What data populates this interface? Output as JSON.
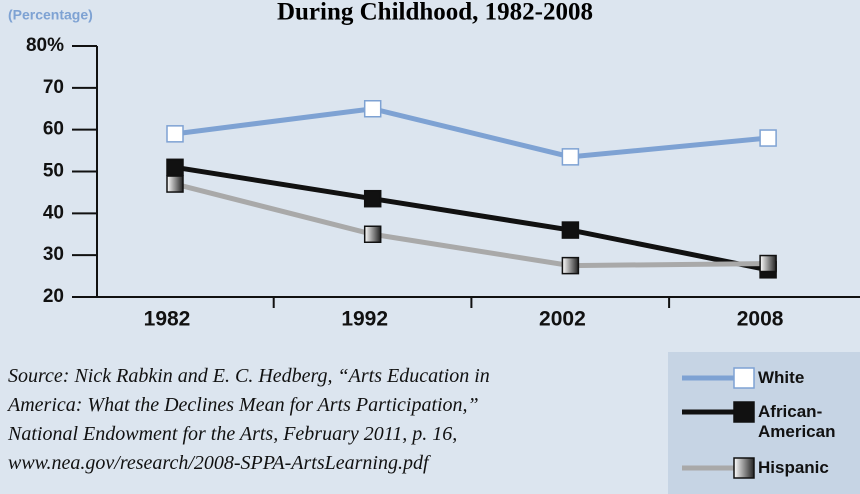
{
  "chart_data": {
    "type": "line",
    "title": "During Childhood, 1982-2008",
    "y_label": "(Percentage)",
    "categories": [
      "1982",
      "1992",
      "2002",
      "2008"
    ],
    "series": [
      {
        "name": "White",
        "color": "#7ea2d3",
        "marker": "#ffffff",
        "values": [
          59,
          65,
          53.5,
          58
        ]
      },
      {
        "name": "African-American",
        "color": "#111111",
        "marker": "#111111",
        "values": [
          51,
          43.5,
          36,
          26.5
        ]
      },
      {
        "name": "Hispanic",
        "color": "#a9a9a9",
        "marker": "gradient",
        "values": [
          47,
          35,
          27.5,
          28
        ]
      }
    ],
    "ylim": [
      20,
      80
    ],
    "yticks": [
      20,
      30,
      40,
      50,
      60,
      70,
      {
        "value": 80,
        "label": "80%"
      }
    ],
    "source": [
      "Source: Nick Rabkin and E. C. Hedberg, “Arts Education in",
      "America: What the Declines Mean for Arts Participation,”",
      "National Endowment for the Arts, February 2011, p. 16,",
      "www.nea.gov/research/2008-SPPA-ArtsLearning.pdf"
    ]
  }
}
